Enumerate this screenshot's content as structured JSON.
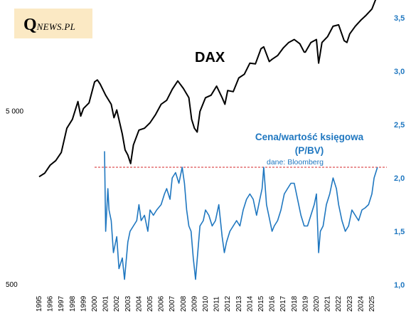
{
  "logo": {
    "q": "Q",
    "rest": "NEWS.PL"
  },
  "title_dax": "DAX",
  "pbv_title_line1": "Cena/wartość księgowa",
  "pbv_title_line2": "(P/BV)",
  "pbv_source": "dane: Bloomberg",
  "colors": {
    "dax": "#000000",
    "pbv": "#1f77c0",
    "reference_line": "#d62728",
    "logo_bg": "#fbe9c4"
  },
  "chart_data": {
    "type": "line",
    "x_ticks": [
      "1995",
      "1996",
      "1997",
      "1998",
      "1999",
      "2000",
      "2001",
      "2002",
      "2003",
      "2004",
      "2005",
      "2006",
      "2007",
      "2008",
      "2009",
      "2010",
      "2011",
      "2012",
      "2013",
      "2014",
      "2015",
      "2016",
      "2017",
      "2018",
      "2019",
      "2020",
      "2021",
      "2022",
      "2023",
      "2024",
      "2025"
    ],
    "y_left": {
      "scale": "log",
      "range": [
        500,
        20000
      ],
      "ticks": [
        "500",
        "5 000"
      ]
    },
    "y_right": {
      "range": [
        1.0,
        3.6
      ],
      "ticks": [
        "1,0",
        "1,5",
        "2,0",
        "2,5",
        "3,0",
        "3,5"
      ]
    },
    "reference_line": {
      "axis": "right",
      "value": 2.1
    },
    "series": [
      {
        "name": "DAX",
        "axis": "left",
        "x": [
          1995.0,
          1995.5,
          1996.0,
          1996.5,
          1997.0,
          1997.5,
          1998.0,
          1998.5,
          1998.75,
          1999.0,
          1999.5,
          2000.0,
          2000.25,
          2000.5,
          2001.0,
          2001.5,
          2001.75,
          2002.0,
          2002.5,
          2002.75,
          2003.0,
          2003.25,
          2003.5,
          2004.0,
          2004.5,
          2005.0,
          2005.5,
          2006.0,
          2006.5,
          2007.0,
          2007.5,
          2008.0,
          2008.5,
          2008.75,
          2009.0,
          2009.25,
          2009.5,
          2010.0,
          2010.5,
          2011.0,
          2011.5,
          2011.75,
          2012.0,
          2012.5,
          2013.0,
          2013.5,
          2014.0,
          2014.5,
          2015.0,
          2015.25,
          2015.75,
          2016.0,
          2016.5,
          2017.0,
          2017.5,
          2018.0,
          2018.5,
          2018.9,
          2019.0,
          2019.5,
          2020.0,
          2020.2,
          2020.5,
          2021.0,
          2021.5,
          2022.0,
          2022.5,
          2022.75,
          2023.0,
          2023.5,
          2024.0,
          2024.5,
          2025.0,
          2025.5
        ],
        "values": [
          2100,
          2200,
          2450,
          2600,
          2900,
          4000,
          4500,
          5700,
          4700,
          5200,
          5600,
          7400,
          7600,
          7200,
          6200,
          5500,
          4600,
          5100,
          3700,
          3000,
          2800,
          2500,
          3200,
          3900,
          4000,
          4300,
          4800,
          5500,
          5800,
          6700,
          7500,
          6800,
          6000,
          4500,
          4000,
          3800,
          5000,
          6000,
          6200,
          7000,
          6000,
          5500,
          6600,
          6500,
          7800,
          8200,
          9500,
          9400,
          11500,
          11800,
          9700,
          10000,
          10500,
          11600,
          12500,
          13000,
          12300,
          11000,
          11000,
          12500,
          13000,
          9500,
          12500,
          13500,
          15500,
          15800,
          12800,
          12500,
          14000,
          15500,
          16800,
          18000,
          19500,
          23500
        ]
      },
      {
        "name": "",
        "axis": "right",
        "x": [
          2000.9,
          2001.0,
          2001.2,
          2001.3,
          2001.5,
          2001.7,
          2002.0,
          2002.2,
          2002.5,
          2002.7,
          2003.0,
          2003.2,
          2003.5,
          2003.8,
          2004.0,
          2004.2,
          2004.5,
          2004.8,
          2005.0,
          2005.3,
          2005.6,
          2006.0,
          2006.3,
          2006.5,
          2006.8,
          2007.0,
          2007.3,
          2007.6,
          2007.9,
          2008.1,
          2008.3,
          2008.5,
          2008.7,
          2008.9,
          2009.1,
          2009.3,
          2009.5,
          2009.8,
          2010.0,
          2010.3,
          2010.6,
          2010.9,
          2011.2,
          2011.5,
          2011.7,
          2011.9,
          2012.2,
          2012.5,
          2012.8,
          2013.1,
          2013.4,
          2013.7,
          2014.0,
          2014.3,
          2014.6,
          2014.9,
          2015.1,
          2015.25,
          2015.5,
          2015.8,
          2016.0,
          2016.2,
          2016.5,
          2016.8,
          2017.1,
          2017.4,
          2017.7,
          2018.0,
          2018.3,
          2018.6,
          2018.9,
          2019.2,
          2019.5,
          2019.8,
          2020.0,
          2020.2,
          2020.35,
          2020.6,
          2020.9,
          2021.2,
          2021.5,
          2021.8,
          2022.0,
          2022.3,
          2022.6,
          2022.9,
          2023.2,
          2023.5,
          2023.8,
          2024.1,
          2024.4,
          2024.7,
          2025.0,
          2025.2,
          2025.5
        ],
        "values": [
          2.25,
          1.5,
          1.9,
          1.7,
          1.6,
          1.3,
          1.45,
          1.15,
          1.25,
          1.05,
          1.4,
          1.5,
          1.55,
          1.6,
          1.75,
          1.6,
          1.65,
          1.5,
          1.7,
          1.65,
          1.7,
          1.75,
          1.85,
          1.9,
          1.8,
          2.0,
          2.05,
          1.95,
          2.1,
          1.95,
          1.7,
          1.55,
          1.5,
          1.25,
          1.05,
          1.3,
          1.55,
          1.6,
          1.7,
          1.65,
          1.55,
          1.6,
          1.75,
          1.45,
          1.3,
          1.4,
          1.5,
          1.55,
          1.6,
          1.55,
          1.7,
          1.8,
          1.85,
          1.8,
          1.65,
          1.8,
          1.9,
          2.1,
          1.75,
          1.6,
          1.5,
          1.55,
          1.6,
          1.7,
          1.85,
          1.9,
          1.95,
          1.95,
          1.8,
          1.65,
          1.55,
          1.55,
          1.65,
          1.75,
          1.85,
          1.3,
          1.5,
          1.55,
          1.75,
          1.85,
          2.0,
          1.9,
          1.75,
          1.6,
          1.5,
          1.55,
          1.7,
          1.65,
          1.6,
          1.7,
          1.72,
          1.75,
          1.85,
          2.0,
          2.1
        ]
      }
    ]
  }
}
